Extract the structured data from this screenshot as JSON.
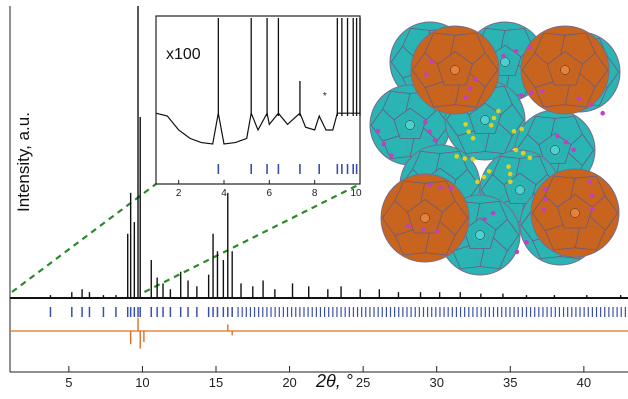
{
  "chart_data": [
    {
      "type": "line",
      "panel": "main",
      "xlabel": "2θ, °",
      "ylabel": "Intensity, a.u.",
      "xlim": [
        1,
        43
      ],
      "x_ticks": [
        5,
        10,
        15,
        20,
        25,
        30,
        35,
        40
      ],
      "series": [
        {
          "role": "observed",
          "color": "#111111",
          "x": [
            1.0,
            3.75,
            5.2,
            5.9,
            6.4,
            7.35,
            8.2,
            9.0,
            9.2,
            9.45,
            9.7,
            9.85,
            10.6,
            11.0,
            11.4,
            11.9,
            12.6,
            13.1,
            13.7,
            14.5,
            14.8,
            15.1,
            15.5,
            15.8,
            16.1,
            16.7,
            17.5,
            18.2,
            19.0,
            20.2,
            21.3,
            22.6,
            23.5,
            24.8,
            26.1,
            27.4,
            28.9,
            30.2,
            31.6,
            33.0,
            34.5,
            36.1,
            38.0,
            40.2,
            42.5
          ],
          "y": [
            0.0,
            0.01,
            0.02,
            0.03,
            0.02,
            0.01,
            0.01,
            0.22,
            0.36,
            0.26,
            1.0,
            0.62,
            0.13,
            0.07,
            0.05,
            0.03,
            0.09,
            0.06,
            0.04,
            0.08,
            0.22,
            0.16,
            0.13,
            0.36,
            0.16,
            0.05,
            0.04,
            0.06,
            0.03,
            0.05,
            0.04,
            0.03,
            0.04,
            0.03,
            0.03,
            0.02,
            0.02,
            0.02,
            0.02,
            0.015,
            0.015,
            0.01,
            0.01,
            0.01,
            0.01
          ]
        },
        {
          "role": "difference",
          "color": "#e07020",
          "x": [
            9.2,
            9.7,
            9.85,
            10.1,
            15.8,
            16.1
          ],
          "y": [
            -0.06,
            0.06,
            -0.08,
            -0.05,
            0.03,
            -0.02
          ]
        }
      ],
      "reflection_marks": {
        "color": "#3a4fa8",
        "x": [
          3.75,
          5.2,
          5.9,
          6.4,
          7.35,
          8.2,
          9.0,
          9.2,
          9.45,
          9.7,
          9.85,
          10.6,
          11.0,
          11.4,
          11.9,
          12.6,
          13.1,
          13.7,
          14.5,
          14.8,
          15.1,
          15.5,
          15.8,
          16.1
        ]
      },
      "zoom_guides": {
        "color": "#2a8a2a",
        "style": "dashed",
        "x_range": [
          1,
          10
        ]
      }
    },
    {
      "type": "line",
      "panel": "inset",
      "title": "x100",
      "xlim": [
        1,
        10
      ],
      "x_ticks": [
        2,
        4,
        6,
        8,
        10
      ],
      "series": [
        {
          "role": "observed",
          "color": "#111111",
          "x": [
            1.0,
            1.5,
            2.0,
            2.5,
            3.0,
            3.5,
            3.75,
            4.0,
            4.5,
            5.0,
            5.2,
            5.5,
            5.9,
            6.0,
            6.4,
            6.8,
            7.35,
            7.6,
            8.0,
            8.2,
            8.5,
            8.8,
            9.0,
            9.2,
            9.45,
            9.7,
            9.85,
            10.0
          ],
          "y": [
            0.45,
            0.3,
            0.2,
            0.14,
            0.11,
            0.1,
            1.0,
            0.1,
            0.11,
            0.14,
            1.0,
            0.2,
            1.0,
            0.24,
            1.0,
            0.24,
            0.55,
            0.22,
            0.2,
            0.3,
            0.2,
            0.2,
            1.0,
            1.0,
            1.0,
            1.0,
            1.0,
            1.0
          ]
        }
      ],
      "annotations": [
        {
          "x": 8.45,
          "marker": "*",
          "color": "#e0302a"
        }
      ],
      "reflection_marks": {
        "color": "#3a4fa8",
        "x": [
          3.75,
          5.2,
          5.9,
          6.4,
          7.35,
          8.2,
          9.0,
          9.2,
          9.45,
          9.7,
          9.85
        ]
      }
    }
  ],
  "structure_image": {
    "description_colors": {
      "orange_cages": "#c8641e",
      "cyan_cages": "#2ab4b4",
      "nodes": "#c040c0"
    }
  }
}
